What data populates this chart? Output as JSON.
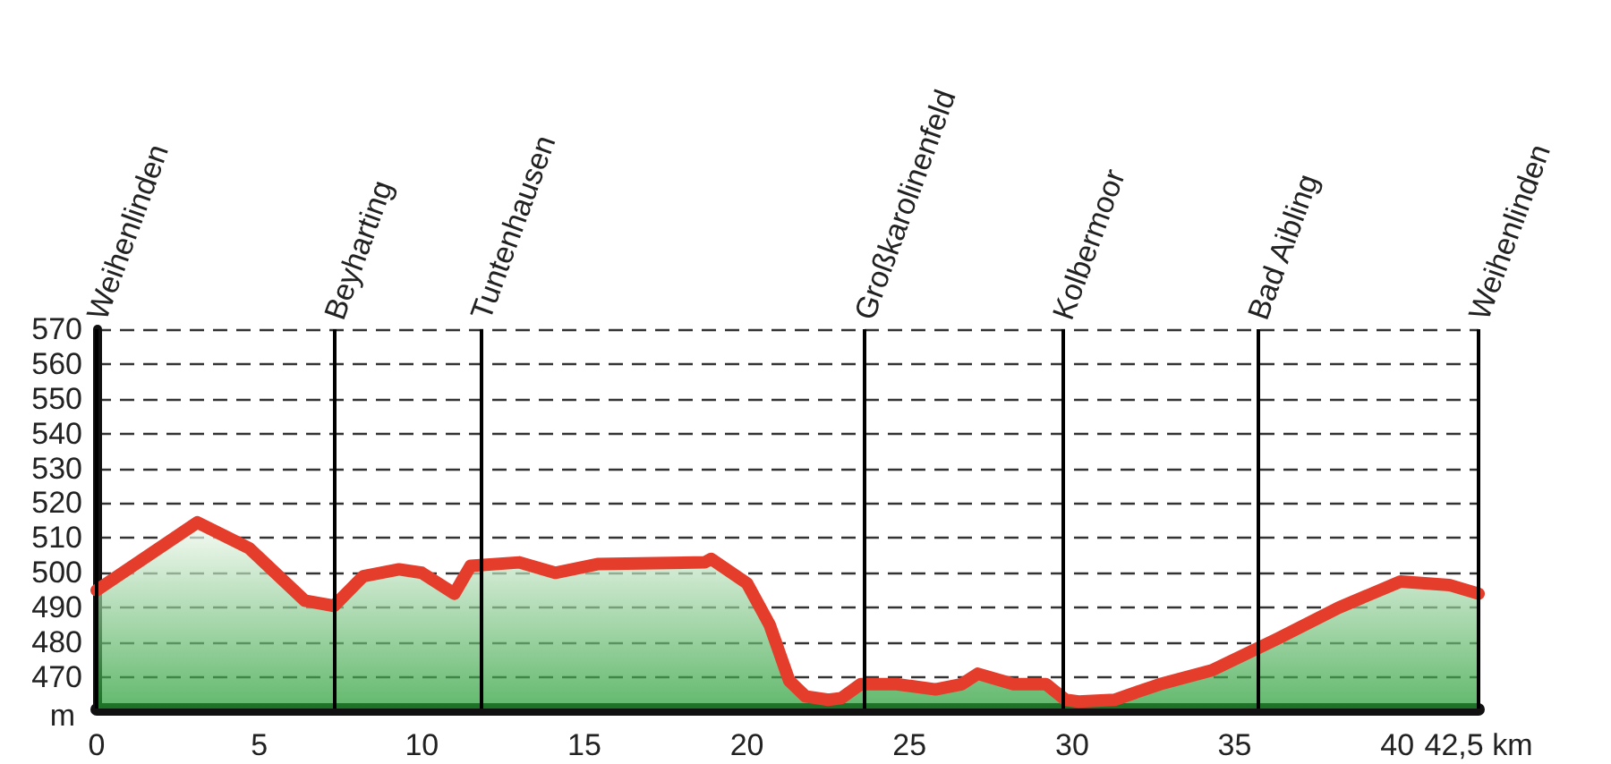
{
  "chart_data": {
    "type": "area",
    "ylabel": "m",
    "x": [
      0,
      3.1,
      4.7,
      6.4,
      7.3,
      8.2,
      9.3,
      10.0,
      11.0,
      11.5,
      13.0,
      14.1,
      15.4,
      18.7,
      18.9,
      20.0,
      20.7,
      21.3,
      21.8,
      22.5,
      22.9,
      23.5,
      24.6,
      25.8,
      26.6,
      27.1,
      28.2,
      29.2,
      29.8,
      30.2,
      31.3,
      32.7,
      34.3,
      36.3,
      38.2,
      40.1,
      41.6,
      42.5
    ],
    "series": [
      {
        "color": "#e53d2b",
        "values": [
          495,
          514.5,
          507,
          492,
          490.5,
          499,
          501,
          500,
          494,
          502,
          503,
          500,
          502.5,
          503,
          504,
          497,
          485,
          469,
          464.5,
          463.5,
          464,
          468,
          468,
          466.5,
          468,
          471,
          468,
          468,
          463.5,
          463,
          463.5,
          468,
          472,
          481,
          490,
          497.5,
          496.5,
          494
        ]
      }
    ],
    "xlim": [
      0,
      42.5
    ],
    "xticks": [
      0,
      5,
      10,
      15,
      20,
      25,
      30,
      35,
      40,
      {
        "value": 42.5,
        "label": "42,5 km"
      }
    ],
    "ylim": [
      461,
      570
    ],
    "yticks": [
      470,
      480,
      490,
      500,
      510,
      520,
      530,
      540,
      550,
      560,
      570
    ],
    "grid": "y",
    "line_style": "solid",
    "ref_lines": [
      {
        "axis": "x",
        "value": 0,
        "label": "Weihenlinden",
        "color": "#000000"
      },
      {
        "axis": "x",
        "value": 7.3,
        "label": "Beyharting",
        "color": "#000000"
      },
      {
        "axis": "x",
        "value": 11.8,
        "label": "Tuntenhausen",
        "color": "#000000"
      },
      {
        "axis": "x",
        "value": 23.6,
        "label": "Großkarolinenfeld",
        "color": "#000000"
      },
      {
        "axis": "x",
        "value": 29.7,
        "label": "Kolbermoor",
        "color": "#000000"
      },
      {
        "axis": "x",
        "value": 35.7,
        "label": "Bad Aibling",
        "color": "#000000"
      },
      {
        "axis": "x",
        "value": 42.5,
        "label": "Weihenlinden",
        "color": "#000000"
      }
    ]
  }
}
